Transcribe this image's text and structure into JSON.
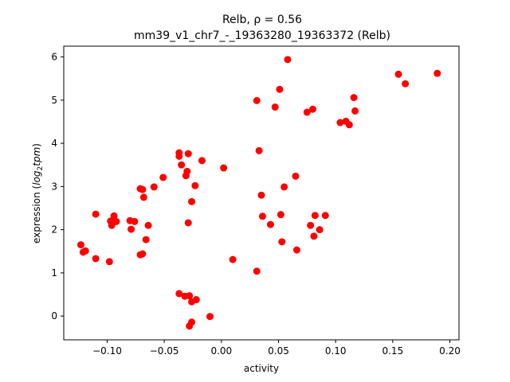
{
  "chart_data": {
    "type": "scatter",
    "title": "Relb, ρ = 0.56",
    "title_line2": "mm39_v1_chr7_-_19363280_19363372 (Relb)",
    "xlabel": "activity",
    "ylabel_prefix": "expression (",
    "ylabel_math": "log",
    "ylabel_sub": "2",
    "ylabel_math2": "tpm",
    "ylabel_suffix": ")",
    "xlim": [
      -0.138,
      0.208
    ],
    "ylim": [
      -0.55,
      6.25
    ],
    "xticks": [
      -0.1,
      -0.05,
      0.0,
      0.05,
      0.1,
      0.15,
      0.2
    ],
    "xtick_labels": [
      "−0.10",
      "−0.05",
      "0.00",
      "0.05",
      "0.10",
      "0.15",
      "0.20"
    ],
    "yticks": [
      0,
      1,
      2,
      3,
      4,
      5,
      6
    ],
    "ytick_labels": [
      "0",
      "1",
      "2",
      "3",
      "4",
      "5",
      "6"
    ],
    "marker_color": "#ff0000",
    "grid": false,
    "points": [
      {
        "x": -0.123,
        "y": 1.65
      },
      {
        "x": -0.121,
        "y": 1.48
      },
      {
        "x": -0.119,
        "y": 1.51
      },
      {
        "x": -0.11,
        "y": 1.33
      },
      {
        "x": -0.11,
        "y": 2.36
      },
      {
        "x": -0.098,
        "y": 1.26
      },
      {
        "x": -0.097,
        "y": 2.2
      },
      {
        "x": -0.096,
        "y": 2.1
      },
      {
        "x": -0.094,
        "y": 2.32
      },
      {
        "x": -0.092,
        "y": 2.19
      },
      {
        "x": -0.08,
        "y": 2.21
      },
      {
        "x": -0.079,
        "y": 2.01
      },
      {
        "x": -0.076,
        "y": 2.19
      },
      {
        "x": -0.071,
        "y": 2.95
      },
      {
        "x": -0.071,
        "y": 1.42
      },
      {
        "x": -0.069,
        "y": 1.44
      },
      {
        "x": -0.069,
        "y": 2.93
      },
      {
        "x": -0.068,
        "y": 2.75
      },
      {
        "x": -0.066,
        "y": 1.77
      },
      {
        "x": -0.064,
        "y": 2.1
      },
      {
        "x": -0.059,
        "y": 2.99
      },
      {
        "x": -0.051,
        "y": 3.21
      },
      {
        "x": -0.037,
        "y": 3.78
      },
      {
        "x": -0.037,
        "y": 3.7
      },
      {
        "x": -0.035,
        "y": 3.5
      },
      {
        "x": -0.031,
        "y": 3.25
      },
      {
        "x": -0.03,
        "y": 3.35
      },
      {
        "x": -0.029,
        "y": 3.76
      },
      {
        "x": -0.029,
        "y": 2.16
      },
      {
        "x": -0.026,
        "y": 2.65
      },
      {
        "x": -0.023,
        "y": 3.02
      },
      {
        "x": -0.017,
        "y": 3.6
      },
      {
        "x": -0.037,
        "y": 0.52
      },
      {
        "x": -0.032,
        "y": 0.46
      },
      {
        "x": -0.028,
        "y": 0.47
      },
      {
        "x": -0.026,
        "y": 0.33
      },
      {
        "x": -0.022,
        "y": 0.38
      },
      {
        "x": -0.028,
        "y": -0.23
      },
      {
        "x": -0.026,
        "y": -0.14
      },
      {
        "x": -0.01,
        "y": -0.01
      },
      {
        "x": 0.002,
        "y": 3.43
      },
      {
        "x": 0.01,
        "y": 1.31
      },
      {
        "x": 0.031,
        "y": 4.99
      },
      {
        "x": 0.031,
        "y": 1.04
      },
      {
        "x": 0.033,
        "y": 3.83
      },
      {
        "x": 0.035,
        "y": 2.8
      },
      {
        "x": 0.036,
        "y": 2.31
      },
      {
        "x": 0.043,
        "y": 2.12
      },
      {
        "x": 0.047,
        "y": 4.84
      },
      {
        "x": 0.051,
        "y": 5.25
      },
      {
        "x": 0.052,
        "y": 2.35
      },
      {
        "x": 0.053,
        "y": 1.72
      },
      {
        "x": 0.055,
        "y": 2.99
      },
      {
        "x": 0.058,
        "y": 5.94
      },
      {
        "x": 0.065,
        "y": 3.24
      },
      {
        "x": 0.066,
        "y": 1.53
      },
      {
        "x": 0.075,
        "y": 4.72
      },
      {
        "x": 0.078,
        "y": 2.1
      },
      {
        "x": 0.08,
        "y": 4.79
      },
      {
        "x": 0.081,
        "y": 1.85
      },
      {
        "x": 0.082,
        "y": 2.33
      },
      {
        "x": 0.086,
        "y": 2.0
      },
      {
        "x": 0.091,
        "y": 2.33
      },
      {
        "x": 0.104,
        "y": 4.48
      },
      {
        "x": 0.109,
        "y": 4.51
      },
      {
        "x": 0.112,
        "y": 4.43
      },
      {
        "x": 0.116,
        "y": 5.06
      },
      {
        "x": 0.117,
        "y": 4.75
      },
      {
        "x": 0.155,
        "y": 5.6
      },
      {
        "x": 0.161,
        "y": 5.38
      },
      {
        "x": 0.189,
        "y": 5.62
      }
    ]
  }
}
